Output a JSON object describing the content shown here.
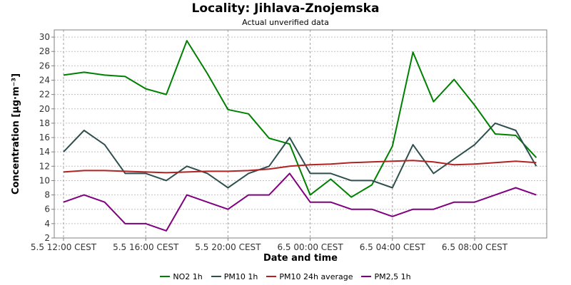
{
  "chart_data": {
    "type": "line",
    "title": "Locality: Jihlava-Znojemska",
    "subtitle": "Actual unverified data",
    "xlabel": "Date and time",
    "ylabel": "Concentration [µg·m⁻³]",
    "ylim": [
      2,
      31
    ],
    "yticks": [
      2,
      4,
      6,
      8,
      10,
      12,
      14,
      16,
      18,
      20,
      22,
      24,
      26,
      28,
      30
    ],
    "x": [
      "5.5 12:00",
      "5.5 13:00",
      "5.5 14:00",
      "5.5 15:00",
      "5.5 16:00",
      "5.5 17:00",
      "5.5 18:00",
      "5.5 19:00",
      "5.5 20:00",
      "5.5 21:00",
      "5.5 22:00",
      "5.5 23:00",
      "6.5 00:00",
      "6.5 01:00",
      "6.5 02:00",
      "6.5 03:00",
      "6.5 04:00",
      "6.5 05:00",
      "6.5 06:00",
      "6.5 07:00",
      "6.5 08:00",
      "6.5 09:00",
      "6.5 10:00",
      "6.5 11:00"
    ],
    "xticks": [
      "5.5 12:00 CEST",
      "5.5 16:00 CEST",
      "5.5 20:00 CEST",
      "6.5 00:00 CEST",
      "6.5 04:00 CEST",
      "6.5 08:00 CEST"
    ],
    "xtick_indices": [
      0,
      4,
      8,
      12,
      16,
      20
    ],
    "grid": true,
    "legend_position": "bottom",
    "series": [
      {
        "name": "NO2 1h",
        "color": "#008000",
        "values": [
          24.7,
          25.1,
          24.7,
          24.5,
          22.8,
          22.0,
          29.5,
          24.9,
          19.9,
          19.3,
          15.9,
          15.1,
          8.0,
          10.2,
          7.7,
          9.4,
          14.8,
          27.9,
          21.0,
          24.1,
          20.5,
          16.5,
          16.3,
          13.2
        ]
      },
      {
        "name": "PM10 1h",
        "color": "#2f4f4f",
        "values": [
          14,
          17,
          15,
          11,
          11,
          10,
          12,
          11,
          9,
          11,
          12,
          16,
          11,
          11,
          10,
          10,
          9,
          15,
          11,
          13,
          15,
          18,
          17,
          12
        ]
      },
      {
        "name": "PM10 24h average",
        "color": "#b22222",
        "values": [
          11.2,
          11.4,
          11.4,
          11.3,
          11.2,
          11.1,
          11.2,
          11.3,
          11.3,
          11.4,
          11.6,
          12.0,
          12.2,
          12.3,
          12.5,
          12.6,
          12.7,
          12.8,
          12.6,
          12.2,
          12.3,
          12.5,
          12.7,
          12.5
        ]
      },
      {
        "name": "PM2,5 1h",
        "color": "#800080",
        "values": [
          7,
          8,
          7,
          4,
          4,
          3,
          8,
          7,
          6,
          8,
          8,
          11,
          7,
          7,
          6,
          6,
          5,
          6,
          6,
          7,
          7,
          8,
          9,
          8
        ]
      }
    ]
  }
}
